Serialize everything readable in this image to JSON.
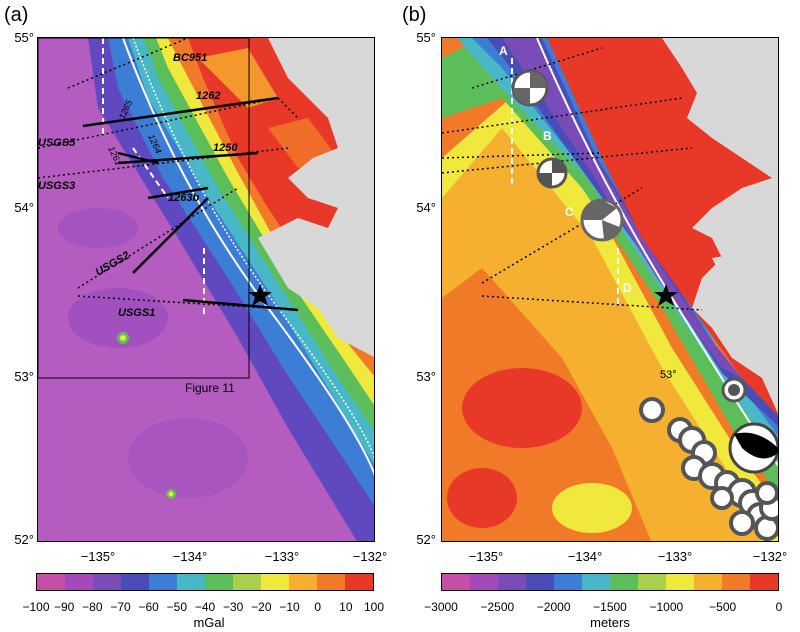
{
  "panels": {
    "a": {
      "letter": "(a)",
      "lat_labels": [
        "55°",
        "54°",
        "53°",
        "52°"
      ],
      "lon_labels": [
        "−135°",
        "−134°",
        "−133°",
        "−132°"
      ],
      "profile_labels": [
        "BC951",
        "1262",
        "1265",
        "1264",
        "USGS5",
        "1250",
        "1261",
        "USGS3",
        "1263b",
        "USGS2",
        "USGS1"
      ],
      "inset_label": "Figure 11",
      "colorbar": {
        "ticks": [
          "−100",
          "−90",
          "−80",
          "−70",
          "−60",
          "−50",
          "−40",
          "−30",
          "−20",
          "−10",
          "0",
          "10",
          "100"
        ],
        "unit": "mGal",
        "colors": [
          "#c44ea8",
          "#a44ab8",
          "#7a4cb8",
          "#4a4cb8",
          "#3c7ed6",
          "#48b8c8",
          "#5cbe5a",
          "#a8d04c",
          "#f0e83c",
          "#f6b030",
          "#f07a28",
          "#e83828"
        ]
      }
    },
    "b": {
      "letter": "(b)",
      "lat_labels": [
        "55°",
        "54°",
        "53°",
        "52°"
      ],
      "lon_labels": [
        "−135°",
        "−134°",
        "−133°",
        "−132°"
      ],
      "point_labels": [
        "A",
        "B",
        "C",
        "D"
      ],
      "inner_label": "53°",
      "colorbar": {
        "ticks": [
          "−3000",
          "−2500",
          "−2000",
          "−1500",
          "−1000",
          "−500",
          "0"
        ],
        "unit": "meters",
        "colors": [
          "#c44ea8",
          "#a44ab8",
          "#7a4cb8",
          "#4a4cb8",
          "#3c7ed6",
          "#48b8c8",
          "#5cbe5a",
          "#a8d04c",
          "#f0e83c",
          "#f6b030",
          "#f07a28",
          "#e83828"
        ]
      }
    }
  }
}
